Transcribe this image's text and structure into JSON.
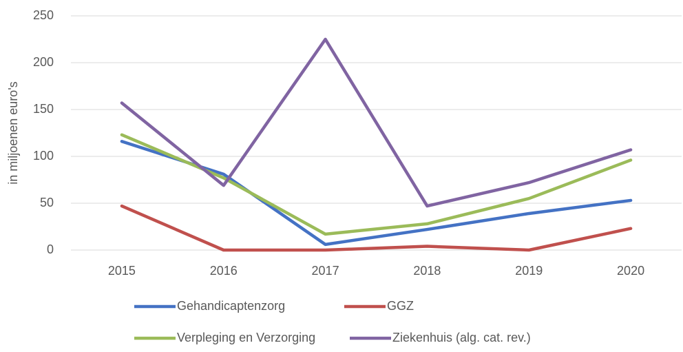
{
  "chart_data": {
    "type": "line",
    "y_label": "in miljoenen euro's",
    "categories": [
      "2015",
      "2016",
      "2017",
      "2018",
      "2019",
      "2020"
    ],
    "series": [
      {
        "name": "Gehandicaptenzorg",
        "color": "#4472c4",
        "values": [
          116,
          81,
          6,
          22,
          39,
          53
        ]
      },
      {
        "name": "GGZ",
        "color": "#c0504d",
        "values": [
          47,
          0,
          0,
          4,
          0,
          23
        ]
      },
      {
        "name": "Verpleging en Verzorging",
        "color": "#9bbb59",
        "values": [
          123,
          77,
          17,
          28,
          55,
          96
        ]
      },
      {
        "name": "Ziekenhuis (alg. cat. rev.)",
        "color": "#8064a2",
        "values": [
          157,
          69,
          225,
          47,
          72,
          107
        ]
      }
    ],
    "ylim": [
      0,
      250
    ],
    "yticks": [
      0,
      50,
      100,
      150,
      200,
      250
    ],
    "grid": true,
    "legend": "bottom"
  }
}
